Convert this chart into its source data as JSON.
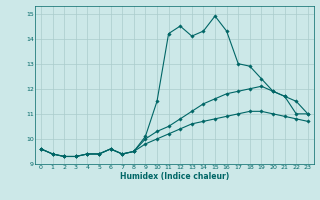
{
  "xlabel": "Humidex (Indice chaleur)",
  "ylabel": "",
  "bg_color": "#cce8e8",
  "grid_color": "#aacccc",
  "line_color": "#006666",
  "xlim": [
    -0.5,
    23.5
  ],
  "ylim": [
    9,
    15.3
  ],
  "xticks": [
    0,
    1,
    2,
    3,
    4,
    5,
    6,
    7,
    8,
    9,
    10,
    11,
    12,
    13,
    14,
    15,
    16,
    17,
    18,
    19,
    20,
    21,
    22,
    23
  ],
  "yticks": [
    9,
    10,
    11,
    12,
    13,
    14,
    15
  ],
  "line1_x": [
    0,
    1,
    2,
    3,
    4,
    5,
    6,
    7,
    8,
    9,
    10,
    11,
    12,
    13,
    14,
    15,
    16,
    17,
    18,
    19,
    20,
    21,
    22,
    23
  ],
  "line1_y": [
    9.6,
    9.4,
    9.3,
    9.3,
    9.4,
    9.4,
    9.6,
    9.4,
    9.5,
    10.1,
    11.5,
    14.2,
    14.5,
    14.1,
    14.3,
    14.9,
    14.3,
    13.0,
    12.9,
    12.4,
    11.9,
    11.7,
    11.5,
    11.0
  ],
  "line2_x": [
    0,
    1,
    2,
    3,
    4,
    5,
    6,
    7,
    8,
    9,
    10,
    11,
    12,
    13,
    14,
    15,
    16,
    17,
    18,
    19,
    20,
    21,
    22,
    23
  ],
  "line2_y": [
    9.6,
    9.4,
    9.3,
    9.3,
    9.4,
    9.4,
    9.6,
    9.4,
    9.5,
    10.0,
    10.3,
    10.5,
    10.8,
    11.1,
    11.4,
    11.6,
    11.8,
    11.9,
    12.0,
    12.1,
    11.9,
    11.7,
    11.0,
    11.0
  ],
  "line3_x": [
    0,
    1,
    2,
    3,
    4,
    5,
    6,
    7,
    8,
    9,
    10,
    11,
    12,
    13,
    14,
    15,
    16,
    17,
    18,
    19,
    20,
    21,
    22,
    23
  ],
  "line3_y": [
    9.6,
    9.4,
    9.3,
    9.3,
    9.4,
    9.4,
    9.6,
    9.4,
    9.5,
    9.8,
    10.0,
    10.2,
    10.4,
    10.6,
    10.7,
    10.8,
    10.9,
    11.0,
    11.1,
    11.1,
    11.0,
    10.9,
    10.8,
    10.7
  ],
  "xlabel_fontsize": 5.5,
  "tick_fontsize": 4.5,
  "marker_size": 1.8,
  "line_width": 0.8
}
